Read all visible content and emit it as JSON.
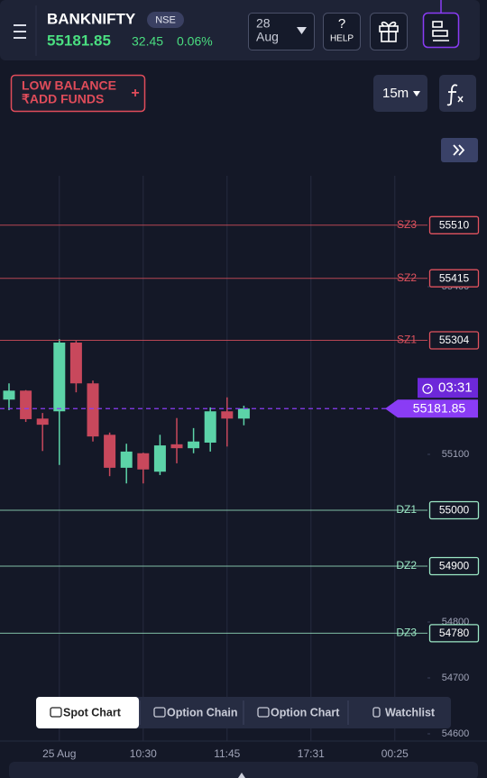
{
  "header": {
    "symbol": "BANKNIFTY",
    "exchange": "NSE",
    "price": "55181.85",
    "change": "32.45",
    "change_pct": "0.06%",
    "date_day": "28",
    "date_month": "Aug",
    "help_icon": "?",
    "help": "HELP"
  },
  "toolbar": {
    "funds_line1": "LOW BALANCE",
    "funds_line2": "₹ADD FUNDS",
    "funds_icon": "+",
    "interval": "15m"
  },
  "chart_data": {
    "type": "candlestick",
    "categories": [
      null,
      null,
      null,
      "25 Aug",
      null,
      null,
      null,
      null,
      "10:30",
      null,
      null,
      null,
      null,
      "11:45",
      null,
      null,
      null,
      null,
      "17:31",
      null,
      null,
      null,
      null,
      "00:25"
    ],
    "open": [
      55198,
      55214,
      55164,
      55177,
      55300,
      55227,
      55135,
      55076,
      55102,
      55069,
      55118,
      55111,
      55121,
      55177,
      55164,
      null,
      null,
      null,
      null,
      null,
      null,
      null,
      null,
      null
    ],
    "high": [
      55227,
      55215,
      55174,
      55306,
      55303,
      55232,
      55139,
      55119,
      55103,
      55135,
      55165,
      55147,
      55184,
      55202,
      55187,
      null,
      null,
      null,
      null,
      null,
      null,
      null,
      null,
      null
    ],
    "low": [
      55179,
      55158,
      55106,
      55081,
      55211,
      55123,
      55061,
      55048,
      55048,
      55063,
      55084,
      55102,
      55105,
      55114,
      55152,
      null,
      null,
      null,
      null,
      null,
      null,
      null,
      null,
      null
    ],
    "close": [
      55214,
      55163,
      55153,
      55300,
      55227,
      55132,
      55076,
      55105,
      55073,
      55116,
      55111,
      55123,
      55177,
      55164,
      55182,
      null,
      null,
      null,
      null,
      null,
      null,
      null,
      null,
      null
    ],
    "up_color": "#5cd3a8",
    "down_color": "#c8485c",
    "ylim": [
      54590,
      55600
    ],
    "yticks": [
      54600,
      54700,
      54800,
      55100,
      55400
    ],
    "zones": [
      {
        "name": "SZ3",
        "value": 55510,
        "color": "#e0525e"
      },
      {
        "name": "SZ2",
        "value": 55415,
        "color": "#e0525e"
      },
      {
        "name": "SZ1",
        "value": 55304,
        "color": "#e0525e"
      },
      {
        "name": "DZ1",
        "value": 55000,
        "color": "#9be8c5"
      },
      {
        "name": "DZ2",
        "value": 54900,
        "color": "#9be8c5"
      },
      {
        "name": "DZ3",
        "value": 54780,
        "color": "#9be8c5"
      }
    ],
    "last_price": 55181.85,
    "timer": "03:31",
    "last_color": "#8a3cf5"
  },
  "tabs": [
    "Spot Chart",
    "Option Chain",
    "Option Chart",
    "Watchlist"
  ]
}
